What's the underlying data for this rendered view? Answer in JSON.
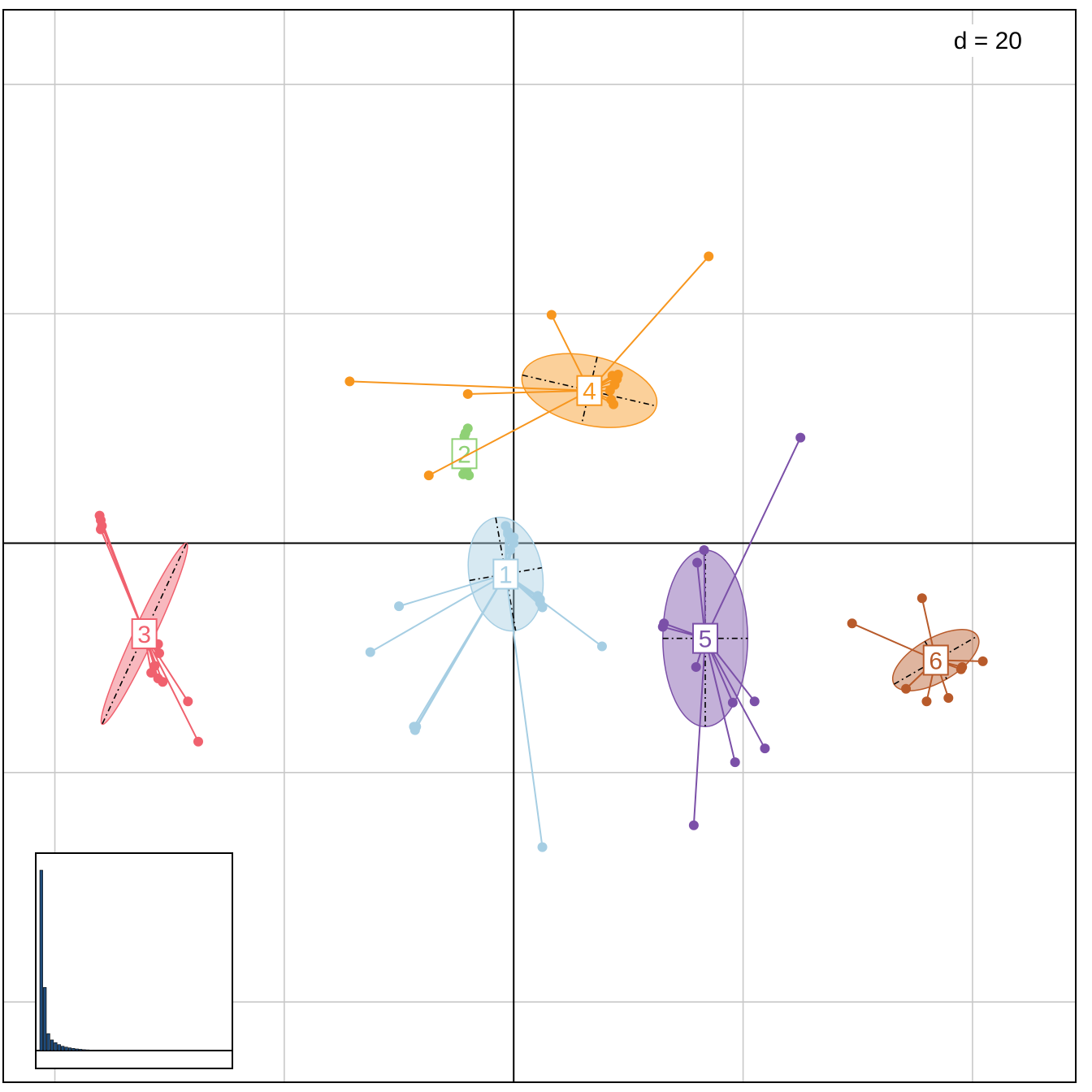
{
  "chart_data": {
    "type": "scatter",
    "title": "",
    "xlabel": "",
    "ylabel": "",
    "scale_label": "d = 20",
    "grid": true,
    "xlim": [
      -44.5,
      49
    ],
    "ylim": [
      -47,
      46.5
    ],
    "groups": [
      {
        "label": "1",
        "color": "#a6cee3",
        "centroid": [
          -0.7,
          -2.7
        ],
        "ellipse": {
          "rx": 3.2,
          "ry": 5.0,
          "angle": 10
        },
        "points": [
          [
            -10,
            -5.5
          ],
          [
            -12.5,
            -9.5
          ],
          [
            -8.7,
            -16
          ],
          [
            -8.6,
            -16.3
          ],
          [
            -8.5,
            -16
          ],
          [
            2.5,
            -26.5
          ],
          [
            7.7,
            -9
          ],
          [
            2.3,
            -5.2
          ],
          [
            2.3,
            -4.9
          ],
          [
            2.5,
            -5.6
          ],
          [
            2.1,
            -4.6
          ],
          [
            -0.7,
            1.5
          ],
          [
            -0.5,
            0.8
          ],
          [
            -0.2,
            0.3
          ],
          [
            0,
            0
          ],
          [
            -0.3,
            -0.6
          ],
          [
            -0.5,
            1.0
          ],
          [
            0,
            0.5
          ]
        ]
      },
      {
        "label": "2",
        "color": "#8fd175",
        "centroid": [
          -4.3,
          7.8
        ],
        "ellipse": {
          "rx": 0.4,
          "ry": 2.1,
          "angle": 0
        },
        "points": [
          [
            -4.2,
            9.6
          ],
          [
            -4.0,
            10.0
          ],
          [
            -4.3,
            9.3
          ],
          [
            -4.4,
            6.0
          ],
          [
            -4.1,
            6.3
          ],
          [
            -3.9,
            5.9
          ]
        ]
      },
      {
        "label": "3",
        "color": "#f0616e",
        "centroid": [
          -32.2,
          -7.9
        ],
        "ellipse": {
          "rx": 0.9,
          "ry": 8.7,
          "angle": -25
        },
        "points": [
          [
            -36.1,
            2.4
          ],
          [
            -36.0,
            2.0
          ],
          [
            -35.9,
            1.5
          ],
          [
            -36.0,
            1.2
          ],
          [
            -31.0,
            -8.8
          ],
          [
            -30.9,
            -9.6
          ],
          [
            -31.3,
            -10.7
          ],
          [
            -31.6,
            -11.3
          ],
          [
            -30.6,
            -12.1
          ],
          [
            -31.0,
            -11.8
          ],
          [
            -28.4,
            -13.8
          ],
          [
            -27.5,
            -17.3
          ]
        ]
      },
      {
        "label": "4",
        "color": "#f7961e",
        "centroid": [
          6.6,
          13.3
        ],
        "ellipse": {
          "rx": 6.0,
          "ry": 3.0,
          "angle": -13
        },
        "points": [
          [
            -14.3,
            14.1
          ],
          [
            -4.0,
            13.0
          ],
          [
            -7.4,
            5.9
          ],
          [
            3.3,
            19.9
          ],
          [
            17.0,
            25.0
          ],
          [
            9.0,
            14.3
          ],
          [
            8.6,
            14.6
          ],
          [
            8.8,
            13.8
          ],
          [
            8.5,
            12.5
          ],
          [
            8.4,
            13.3
          ],
          [
            8.7,
            12.1
          ],
          [
            9.1,
            14.7
          ]
        ]
      },
      {
        "label": "5",
        "color": "#7b50a8",
        "centroid": [
          16.7,
          -8.3
        ],
        "ellipse": {
          "rx": 3.7,
          "ry": 7.7,
          "angle": 0
        },
        "points": [
          [
            25.0,
            9.2
          ],
          [
            16.6,
            -0.6
          ],
          [
            16.0,
            -1.7
          ],
          [
            13.1,
            -7.0
          ],
          [
            13.0,
            -7.3
          ],
          [
            15.9,
            -10.8
          ],
          [
            19.1,
            -13.9
          ],
          [
            21.0,
            -13.8
          ],
          [
            21.9,
            -17.9
          ],
          [
            19.3,
            -19.1
          ],
          [
            15.7,
            -24.6
          ]
        ]
      },
      {
        "label": "6",
        "color": "#b85a2a",
        "centroid": [
          36.8,
          -10.2
        ],
        "ellipse": {
          "rx": 4.2,
          "ry": 1.9,
          "angle": 30
        },
        "points": [
          [
            29.5,
            -7.0
          ],
          [
            35.6,
            -4.8
          ],
          [
            40.9,
            -10.3
          ],
          [
            39.1,
            -10.8
          ],
          [
            34.2,
            -12.7
          ],
          [
            36.0,
            -13.8
          ],
          [
            37.9,
            -13.5
          ],
          [
            39.0,
            -11.0
          ]
        ]
      }
    ],
    "eigenvalues": [
      100,
      35,
      9.4,
      5.9,
      4.4,
      3.3,
      2.4,
      1.9,
      1.5,
      1.2,
      0.9,
      0.7,
      0.5,
      0.4,
      0.3,
      0.25,
      0.2,
      0.15,
      0.12,
      0.1,
      0.08,
      0.07,
      0.06,
      0.05,
      0.04,
      0.03,
      0.02,
      0.02,
      0.01,
      0.01,
      0.01,
      0.01
    ]
  }
}
